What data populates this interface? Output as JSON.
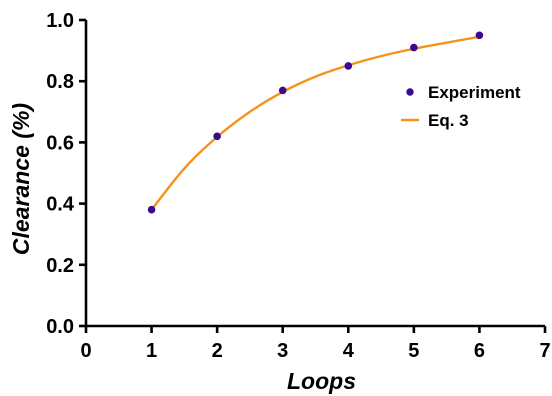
{
  "chart_data": {
    "type": "scatter",
    "xlabel": "Loops",
    "ylabel": "Clearance (%)",
    "xlim": [
      0,
      7
    ],
    "ylim": [
      0,
      1.0
    ],
    "x_ticks": [
      "0",
      "1",
      "2",
      "3",
      "4",
      "5",
      "6",
      "7"
    ],
    "y_ticks": [
      "0.0",
      "0.2",
      "0.4",
      "0.6",
      "0.8",
      "1.0"
    ],
    "grid": false,
    "legend_position": "right",
    "series": [
      {
        "name": "Experiment",
        "kind": "scatter",
        "color": "#3b0a8c",
        "points": [
          {
            "x": 1,
            "y": 0.38
          },
          {
            "x": 2,
            "y": 0.62
          },
          {
            "x": 3,
            "y": 0.77
          },
          {
            "x": 4,
            "y": 0.85
          },
          {
            "x": 5,
            "y": 0.91
          },
          {
            "x": 6,
            "y": 0.95
          }
        ]
      },
      {
        "name": "Eq. 3",
        "kind": "line",
        "color": "#f5921e",
        "points": [
          {
            "x": 1.0,
            "y": 0.38
          },
          {
            "x": 1.5,
            "y": 0.515
          },
          {
            "x": 2.0,
            "y": 0.618
          },
          {
            "x": 2.5,
            "y": 0.7
          },
          {
            "x": 3.0,
            "y": 0.765
          },
          {
            "x": 3.5,
            "y": 0.815
          },
          {
            "x": 4.0,
            "y": 0.852
          },
          {
            "x": 4.5,
            "y": 0.882
          },
          {
            "x": 5.0,
            "y": 0.906
          },
          {
            "x": 5.5,
            "y": 0.926
          },
          {
            "x": 6.0,
            "y": 0.945
          }
        ]
      }
    ]
  }
}
